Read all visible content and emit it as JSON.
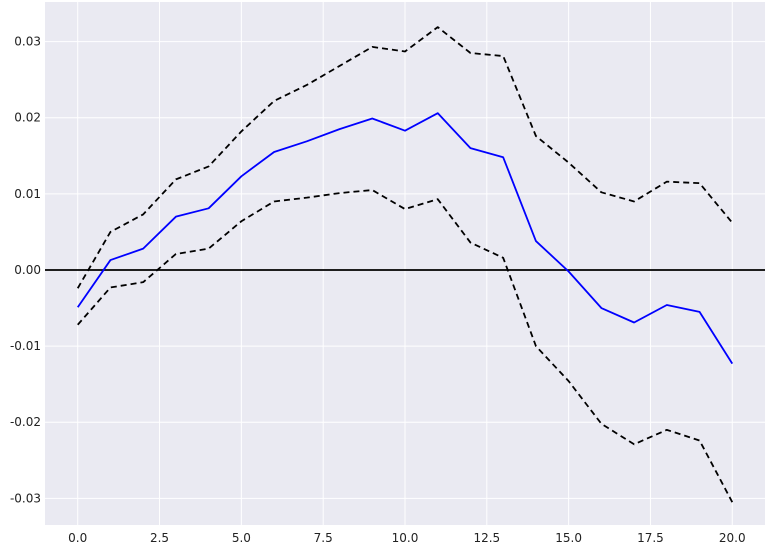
{
  "chart_data": {
    "type": "line",
    "title": "",
    "xlabel": "",
    "ylabel": "",
    "xlim": [
      -1.0,
      21.0
    ],
    "ylim": [
      -0.0335,
      0.0352
    ],
    "x": [
      0,
      1,
      2,
      3,
      4,
      5,
      6,
      7,
      8,
      9,
      10,
      11,
      12,
      13,
      14,
      15,
      16,
      17,
      18,
      19,
      20
    ],
    "x_ticks": [
      0.0,
      2.5,
      5.0,
      7.5,
      10.0,
      12.5,
      15.0,
      17.5,
      20.0
    ],
    "x_tick_labels": [
      "0.0",
      "2.5",
      "5.0",
      "7.5",
      "10.0",
      "12.5",
      "15.0",
      "17.5",
      "20.0"
    ],
    "y_ticks": [
      -0.03,
      -0.02,
      -0.01,
      0.0,
      0.01,
      0.02,
      0.03
    ],
    "y_tick_labels": [
      "-0.03",
      "-0.02",
      "-0.01",
      "0.00",
      "0.01",
      "0.02",
      "0.03"
    ],
    "grid": true,
    "reference_line": {
      "y": 0.0,
      "color": "#000000"
    },
    "background_color": "#eaeaf2",
    "series": [
      {
        "style": "solid",
        "color": "#0000ff",
        "values": [
          -0.0049,
          0.0013,
          0.0028,
          0.007,
          0.0081,
          0.0123,
          0.0155,
          0.0169,
          0.0185,
          0.0199,
          0.0183,
          0.0206,
          0.016,
          0.0148,
          0.0038,
          -0.0002,
          -0.005,
          -0.0069,
          -0.0046,
          -0.0055,
          -0.0123
        ]
      },
      {
        "style": "dashed",
        "color": "#000000",
        "values": [
          -0.0024,
          0.005,
          0.0073,
          0.0119,
          0.0136,
          0.0182,
          0.0222,
          0.0243,
          0.0268,
          0.0293,
          0.0287,
          0.0319,
          0.0285,
          0.0281,
          0.0176,
          0.0141,
          0.0102,
          0.009,
          0.0116,
          0.0114,
          0.0062
        ]
      },
      {
        "style": "dashed",
        "color": "#000000",
        "values": [
          -0.0072,
          -0.0023,
          -0.0016,
          0.0021,
          0.0028,
          0.0064,
          0.009,
          0.0095,
          0.0101,
          0.0105,
          0.008,
          0.0093,
          0.0036,
          0.0016,
          -0.01,
          -0.0146,
          -0.0202,
          -0.0229,
          -0.021,
          -0.0224,
          -0.0305
        ]
      }
    ]
  }
}
